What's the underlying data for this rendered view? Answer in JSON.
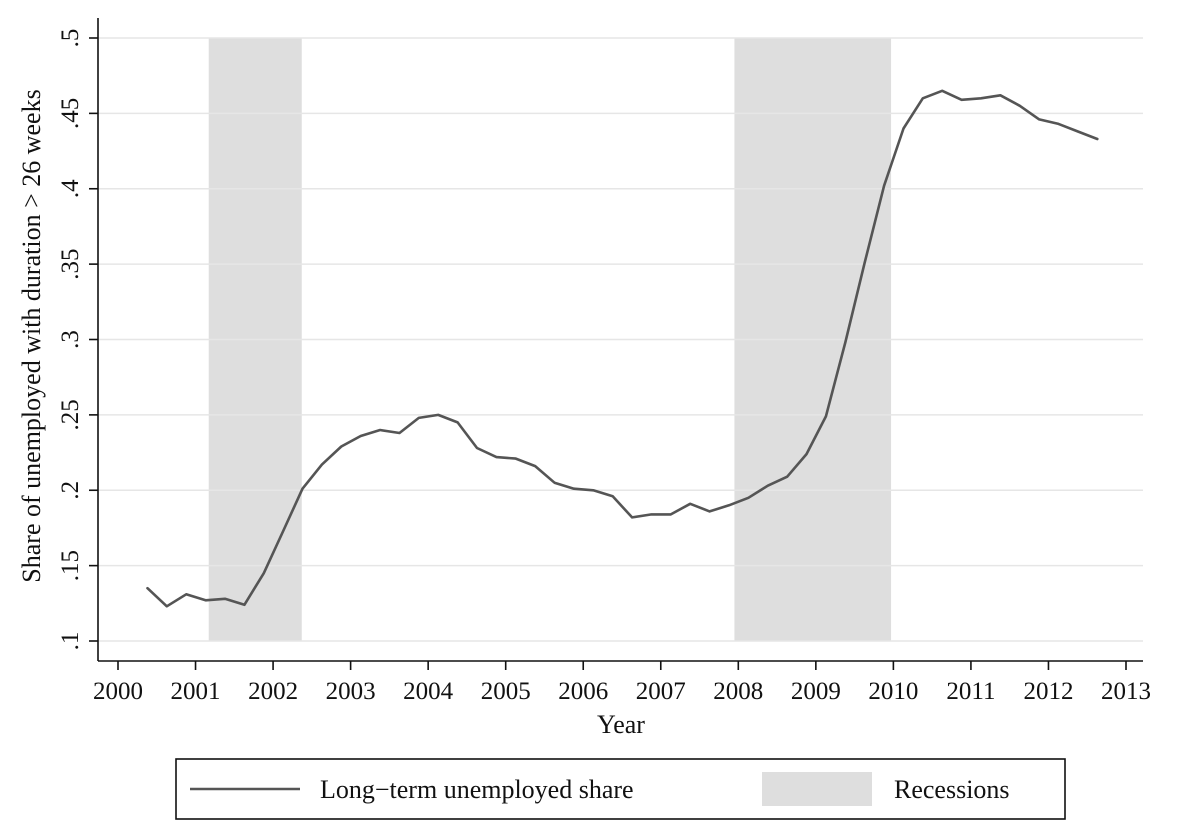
{
  "chart_data": {
    "type": "line",
    "title": "",
    "xlabel": "Year",
    "ylabel": "Share of unemployed with duration > 26 weeks",
    "xlim": [
      2000,
      2013
    ],
    "ylim": [
      0.1,
      0.5
    ],
    "x_ticks": [
      2000,
      2001,
      2002,
      2003,
      2004,
      2005,
      2006,
      2007,
      2008,
      2009,
      2010,
      2011,
      2012,
      2013
    ],
    "x_tick_labels": [
      "2000",
      "2001",
      "2002",
      "2003",
      "2004",
      "2005",
      "2006",
      "2007",
      "2008",
      "2009",
      "2010",
      "2011",
      "2012",
      "2013"
    ],
    "y_ticks": [
      0.1,
      0.15,
      0.2,
      0.25,
      0.3,
      0.35,
      0.4,
      0.45,
      0.5
    ],
    "y_tick_labels": [
      ".1",
      ".15",
      ".2",
      ".25",
      ".3",
      ".35",
      ".4",
      ".45",
      ".5"
    ],
    "grid": "horizontal",
    "legend_position": "bottom",
    "recessions": {
      "name": "Recessions",
      "color": "#dedede",
      "periods": [
        [
          2001.17,
          2002.37
        ],
        [
          2007.95,
          2009.97
        ]
      ]
    },
    "series": [
      {
        "name": "Long−term unemployed share",
        "color": "#555555",
        "x": [
          2000.38,
          2000.63,
          2000.88,
          2001.13,
          2001.38,
          2001.63,
          2001.88,
          2002.13,
          2002.38,
          2002.63,
          2002.88,
          2003.13,
          2003.38,
          2003.63,
          2003.88,
          2004.13,
          2004.38,
          2004.63,
          2004.88,
          2005.13,
          2005.38,
          2005.63,
          2005.88,
          2006.13,
          2006.38,
          2006.63,
          2006.88,
          2007.13,
          2007.38,
          2007.63,
          2007.88,
          2008.13,
          2008.38,
          2008.63,
          2008.88,
          2009.13,
          2009.38,
          2009.63,
          2009.88,
          2010.13,
          2010.38,
          2010.63,
          2010.88,
          2011.13,
          2011.38,
          2011.63,
          2011.88,
          2012.13,
          2012.38,
          2012.63
        ],
        "y": [
          0.135,
          0.123,
          0.131,
          0.127,
          0.128,
          0.124,
          0.145,
          0.173,
          0.201,
          0.217,
          0.229,
          0.236,
          0.24,
          0.238,
          0.248,
          0.25,
          0.245,
          0.228,
          0.222,
          0.221,
          0.216,
          0.205,
          0.201,
          0.2,
          0.196,
          0.182,
          0.184,
          0.184,
          0.191,
          0.186,
          0.19,
          0.195,
          0.203,
          0.209,
          0.224,
          0.249,
          0.298,
          0.351,
          0.402,
          0.44,
          0.46,
          0.465,
          0.459,
          0.46,
          0.462,
          0.455,
          0.446,
          0.443,
          0.438,
          0.433
        ]
      }
    ]
  }
}
